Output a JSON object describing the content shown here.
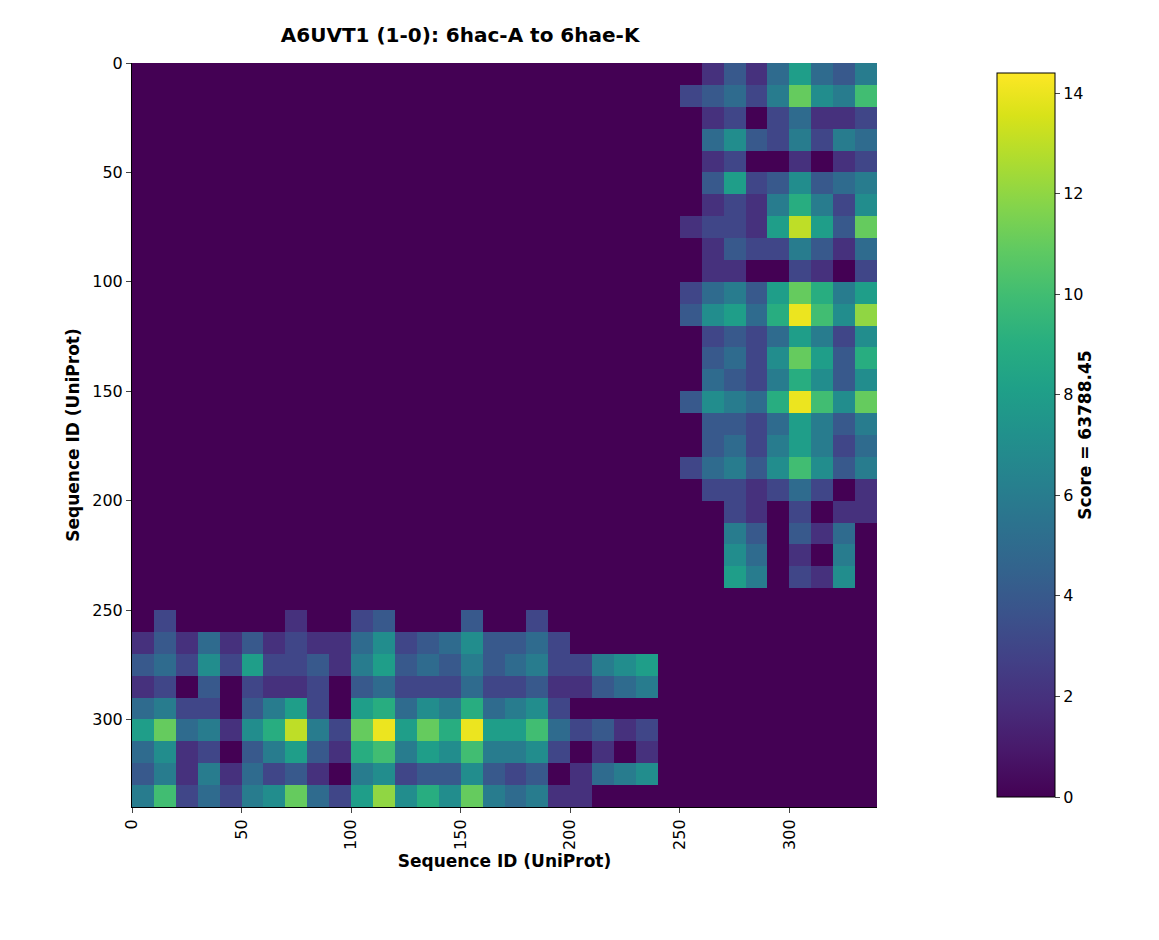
{
  "chart_data": {
    "type": "heatmap",
    "title": "A6UVT1 (1-0): 6hac-A to 6hae-K",
    "x_label": "Sequence ID (UniProt)",
    "y_label": "Sequence ID (UniProt)",
    "x": [
      5,
      15,
      25,
      35,
      45,
      55,
      65,
      75,
      85,
      95,
      105,
      115,
      125,
      135,
      145,
      155,
      165,
      175,
      185,
      195,
      205,
      215,
      225,
      235,
      245,
      255,
      265,
      275,
      285,
      295,
      305,
      315,
      325,
      335
    ],
    "y": [
      5,
      15,
      25,
      35,
      45,
      55,
      65,
      75,
      85,
      95,
      105,
      115,
      125,
      135,
      145,
      155,
      165,
      175,
      185,
      195,
      205,
      215,
      225,
      235,
      245,
      255,
      265,
      275,
      285,
      295,
      305,
      315,
      325,
      335
    ],
    "xlim": [
      0,
      340
    ],
    "ylim": [
      340,
      0
    ],
    "xticks": [
      0,
      50,
      100,
      150,
      200,
      250,
      300
    ],
    "yticks": [
      0,
      50,
      100,
      150,
      200,
      250,
      300
    ],
    "colorbar": {
      "title": "Score = 63788.45",
      "range": [
        0,
        14.4
      ],
      "ticks": [
        0,
        2,
        4,
        6,
        8,
        10,
        12,
        14
      ]
    },
    "z": [
      [
        0,
        0,
        0,
        0,
        0,
        0,
        0,
        0,
        0,
        0,
        0,
        0,
        0,
        0,
        0,
        0,
        0,
        0,
        0,
        0,
        0,
        0,
        0,
        0,
        0,
        0,
        2,
        4,
        2,
        5,
        8,
        5,
        4,
        6
      ],
      [
        0,
        0,
        0,
        0,
        0,
        0,
        0,
        0,
        0,
        0,
        0,
        0,
        0,
        0,
        0,
        0,
        0,
        0,
        0,
        0,
        0,
        0,
        0,
        0,
        0,
        3,
        4,
        5,
        3,
        6,
        11,
        7,
        6,
        10
      ],
      [
        0,
        0,
        0,
        0,
        0,
        0,
        0,
        0,
        0,
        0,
        0,
        0,
        0,
        0,
        0,
        0,
        0,
        0,
        0,
        0,
        0,
        0,
        0,
        0,
        0,
        0,
        2,
        3,
        0,
        3,
        5,
        2,
        2,
        3
      ],
      [
        0,
        0,
        0,
        0,
        0,
        0,
        0,
        0,
        0,
        0,
        0,
        0,
        0,
        0,
        0,
        0,
        0,
        0,
        0,
        0,
        0,
        0,
        0,
        0,
        0,
        0,
        5,
        7,
        4,
        3,
        6,
        3,
        6,
        5
      ],
      [
        0,
        0,
        0,
        0,
        0,
        0,
        0,
        0,
        0,
        0,
        0,
        0,
        0,
        0,
        0,
        0,
        0,
        0,
        0,
        0,
        0,
        0,
        0,
        0,
        0,
        0,
        2,
        3,
        0,
        0,
        2,
        0,
        2,
        3
      ],
      [
        0,
        0,
        0,
        0,
        0,
        0,
        0,
        0,
        0,
        0,
        0,
        0,
        0,
        0,
        0,
        0,
        0,
        0,
        0,
        0,
        0,
        0,
        0,
        0,
        0,
        0,
        4,
        8,
        3,
        4,
        7,
        4,
        5,
        6
      ],
      [
        0,
        0,
        0,
        0,
        0,
        0,
        0,
        0,
        0,
        0,
        0,
        0,
        0,
        0,
        0,
        0,
        0,
        0,
        0,
        0,
        0,
        0,
        0,
        0,
        0,
        0,
        2,
        3,
        2,
        6,
        9,
        6,
        3,
        7
      ],
      [
        0,
        0,
        0,
        0,
        0,
        0,
        0,
        0,
        0,
        0,
        0,
        0,
        0,
        0,
        0,
        0,
        0,
        0,
        0,
        0,
        0,
        0,
        0,
        0,
        0,
        2,
        3,
        3,
        2,
        8,
        13,
        8,
        4,
        11
      ],
      [
        0,
        0,
        0,
        0,
        0,
        0,
        0,
        0,
        0,
        0,
        0,
        0,
        0,
        0,
        0,
        0,
        0,
        0,
        0,
        0,
        0,
        0,
        0,
        0,
        0,
        0,
        2,
        4,
        3,
        3,
        6,
        4,
        2,
        5
      ],
      [
        0,
        0,
        0,
        0,
        0,
        0,
        0,
        0,
        0,
        0,
        0,
        0,
        0,
        0,
        0,
        0,
        0,
        0,
        0,
        0,
        0,
        0,
        0,
        0,
        0,
        0,
        2,
        2,
        0,
        0,
        3,
        2,
        0,
        3
      ],
      [
        0,
        0,
        0,
        0,
        0,
        0,
        0,
        0,
        0,
        0,
        0,
        0,
        0,
        0,
        0,
        0,
        0,
        0,
        0,
        0,
        0,
        0,
        0,
        0,
        0,
        3,
        5,
        6,
        4,
        8,
        11,
        9,
        6,
        8
      ],
      [
        0,
        0,
        0,
        0,
        0,
        0,
        0,
        0,
        0,
        0,
        0,
        0,
        0,
        0,
        0,
        0,
        0,
        0,
        0,
        0,
        0,
        0,
        0,
        0,
        0,
        4,
        7,
        8,
        5,
        9,
        14,
        10,
        7,
        12
      ],
      [
        0,
        0,
        0,
        0,
        0,
        0,
        0,
        0,
        0,
        0,
        0,
        0,
        0,
        0,
        0,
        0,
        0,
        0,
        0,
        0,
        0,
        0,
        0,
        0,
        0,
        0,
        3,
        4,
        3,
        5,
        8,
        6,
        3,
        7
      ],
      [
        0,
        0,
        0,
        0,
        0,
        0,
        0,
        0,
        0,
        0,
        0,
        0,
        0,
        0,
        0,
        0,
        0,
        0,
        0,
        0,
        0,
        0,
        0,
        0,
        0,
        0,
        4,
        5,
        3,
        7,
        11,
        8,
        4,
        9
      ],
      [
        0,
        0,
        0,
        0,
        0,
        0,
        0,
        0,
        0,
        0,
        0,
        0,
        0,
        0,
        0,
        0,
        0,
        0,
        0,
        0,
        0,
        0,
        0,
        0,
        0,
        0,
        5,
        4,
        3,
        6,
        9,
        7,
        4,
        7
      ],
      [
        0,
        0,
        0,
        0,
        0,
        0,
        0,
        0,
        0,
        0,
        0,
        0,
        0,
        0,
        0,
        0,
        0,
        0,
        0,
        0,
        0,
        0,
        0,
        0,
        0,
        4,
        7,
        6,
        5,
        9,
        14,
        10,
        7,
        11
      ],
      [
        0,
        0,
        0,
        0,
        0,
        0,
        0,
        0,
        0,
        0,
        0,
        0,
        0,
        0,
        0,
        0,
        0,
        0,
        0,
        0,
        0,
        0,
        0,
        0,
        0,
        0,
        4,
        4,
        3,
        5,
        8,
        6,
        4,
        6
      ],
      [
        0,
        0,
        0,
        0,
        0,
        0,
        0,
        0,
        0,
        0,
        0,
        0,
        0,
        0,
        0,
        0,
        0,
        0,
        0,
        0,
        0,
        0,
        0,
        0,
        0,
        0,
        4,
        5,
        3,
        6,
        8,
        6,
        3,
        5
      ],
      [
        0,
        0,
        0,
        0,
        0,
        0,
        0,
        0,
        0,
        0,
        0,
        0,
        0,
        0,
        0,
        0,
        0,
        0,
        0,
        0,
        0,
        0,
        0,
        0,
        0,
        3,
        5,
        6,
        4,
        7,
        10,
        7,
        4,
        6
      ],
      [
        0,
        0,
        0,
        0,
        0,
        0,
        0,
        0,
        0,
        0,
        0,
        0,
        0,
        0,
        0,
        0,
        0,
        0,
        0,
        0,
        0,
        0,
        0,
        0,
        0,
        0,
        3,
        3,
        2,
        3,
        5,
        3,
        0,
        2
      ],
      [
        0,
        0,
        0,
        0,
        0,
        0,
        0,
        0,
        0,
        0,
        0,
        0,
        0,
        0,
        0,
        0,
        0,
        0,
        0,
        0,
        0,
        0,
        0,
        0,
        0,
        0,
        0,
        3,
        2,
        0,
        3,
        0,
        2,
        2
      ],
      [
        0,
        0,
        0,
        0,
        0,
        0,
        0,
        0,
        0,
        0,
        0,
        0,
        0,
        0,
        0,
        0,
        0,
        0,
        0,
        0,
        0,
        0,
        0,
        0,
        0,
        0,
        0,
        6,
        4,
        0,
        4,
        2,
        5,
        0
      ],
      [
        0,
        0,
        0,
        0,
        0,
        0,
        0,
        0,
        0,
        0,
        0,
        0,
        0,
        0,
        0,
        0,
        0,
        0,
        0,
        0,
        0,
        0,
        0,
        0,
        0,
        0,
        0,
        7,
        5,
        0,
        2,
        0,
        6,
        0
      ],
      [
        0,
        0,
        0,
        0,
        0,
        0,
        0,
        0,
        0,
        0,
        0,
        0,
        0,
        0,
        0,
        0,
        0,
        0,
        0,
        0,
        0,
        0,
        0,
        0,
        0,
        0,
        0,
        8,
        6,
        0,
        3,
        2,
        7,
        0
      ],
      [
        0,
        0,
        0,
        0,
        0,
        0,
        0,
        0,
        0,
        0,
        0,
        0,
        0,
        0,
        0,
        0,
        0,
        0,
        0,
        0,
        0,
        0,
        0,
        0,
        0,
        0,
        0,
        0,
        0,
        0,
        0,
        0,
        0,
        0
      ],
      [
        0,
        3,
        0,
        0,
        0,
        0,
        0,
        2,
        0,
        0,
        3,
        4,
        0,
        0,
        0,
        4,
        0,
        0,
        3,
        0,
        0,
        0,
        0,
        0,
        0,
        0,
        0,
        0,
        0,
        0,
        0,
        0,
        0,
        0
      ],
      [
        2,
        4,
        2,
        5,
        2,
        4,
        2,
        3,
        2,
        2,
        5,
        7,
        3,
        4,
        5,
        7,
        4,
        4,
        5,
        3,
        0,
        0,
        0,
        0,
        0,
        0,
        0,
        0,
        0,
        0,
        0,
        0,
        0,
        0
      ],
      [
        4,
        5,
        3,
        7,
        3,
        8,
        3,
        3,
        4,
        2,
        6,
        8,
        4,
        5,
        4,
        6,
        4,
        5,
        6,
        3,
        3,
        6,
        7,
        8,
        0,
        0,
        0,
        0,
        0,
        0,
        0,
        0,
        0,
        0
      ],
      [
        2,
        3,
        0,
        4,
        0,
        3,
        2,
        2,
        3,
        0,
        4,
        5,
        3,
        3,
        3,
        5,
        3,
        3,
        4,
        2,
        2,
        4,
        5,
        6,
        0,
        0,
        0,
        0,
        0,
        0,
        0,
        0,
        0,
        0
      ],
      [
        5,
        6,
        3,
        3,
        0,
        4,
        6,
        8,
        3,
        0,
        8,
        9,
        5,
        7,
        6,
        9,
        5,
        6,
        7,
        3,
        0,
        0,
        0,
        0,
        0,
        0,
        0,
        0,
        0,
        0,
        0,
        0,
        0,
        0
      ],
      [
        8,
        11,
        5,
        6,
        2,
        7,
        9,
        13,
        6,
        3,
        11,
        14,
        8,
        11,
        9,
        14,
        8,
        8,
        10,
        5,
        3,
        4,
        2,
        3,
        0,
        0,
        0,
        0,
        0,
        0,
        0,
        0,
        0,
        0
      ],
      [
        5,
        7,
        2,
        3,
        0,
        4,
        6,
        8,
        4,
        2,
        9,
        10,
        6,
        8,
        7,
        10,
        6,
        6,
        7,
        3,
        0,
        2,
        0,
        2,
        0,
        0,
        0,
        0,
        0,
        0,
        0,
        0,
        0,
        0
      ],
      [
        4,
        6,
        2,
        6,
        2,
        5,
        3,
        4,
        2,
        0,
        6,
        7,
        3,
        4,
        4,
        7,
        4,
        3,
        4,
        0,
        2,
        5,
        6,
        7,
        0,
        0,
        0,
        0,
        0,
        0,
        0,
        0,
        0,
        0
      ],
      [
        6,
        10,
        3,
        5,
        3,
        6,
        7,
        11,
        5,
        3,
        8,
        12,
        7,
        9,
        7,
        11,
        6,
        5,
        6,
        2,
        2,
        0,
        0,
        0,
        0,
        0,
        0,
        0,
        0,
        0,
        0,
        0,
        0,
        0
      ]
    ]
  }
}
